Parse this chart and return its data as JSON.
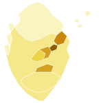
{
  "background_color": "#ffffff",
  "figsize": [
    1.5,
    1.5
  ],
  "dpi": 100,
  "county_colors": {
    "Shetland Islands": "#faf5c0",
    "Orkney Islands": "#faf5c0",
    "Caithness": "#faf5c0",
    "Sutherland": "#faf5c0",
    "Ross and Cromarty": "#f5e88a",
    "Inverness": "#f5e88a",
    "Nairn": "#f5e88a",
    "Moray": "#ecd448",
    "Banff": "#ecd448",
    "Aberdeen": "#c8860a",
    "Kincardine": "#8b5c00",
    "Angus": "#d4a020",
    "Forfar": "#d4a020",
    "Perth": "#d4a020",
    "Argyll": "#f5e88a",
    "Stirling": "#ecd448",
    "Clackmannan": "#ecd448",
    "Kinross": "#ecd448",
    "Fife": "#f5e88a",
    "Dunbarton": "#ecd448",
    "Renfrew": "#ecd448",
    "Lanark": "#d4a020",
    "Linlithgow": "#ecd448",
    "Edinburgh": "#d4a020",
    "Haddington": "#ecd448",
    "Midlothian": "#d4a020",
    "East Lothian": "#ecd448",
    "West Lothian": "#ecd448",
    "Peebles": "#f5e88a",
    "Selkirk": "#f5e88a",
    "Roxburgh": "#f5e88a",
    "Berwick": "#f5e88a",
    "Ayr": "#f5e88a",
    "Bute": "#faf5c0",
    "Dumfries": "#f5e88a",
    "Kirkcudbright": "#f5e88a",
    "Wigtown": "#faf5c0",
    "Western Isles": "#faf5c0"
  },
  "default_color": "#f5e88a",
  "edge_color": "#ffffff",
  "edge_width": 0.4,
  "xlim": [
    -7.8,
    -0.7
  ],
  "ylim": [
    54.4,
    61.0
  ]
}
